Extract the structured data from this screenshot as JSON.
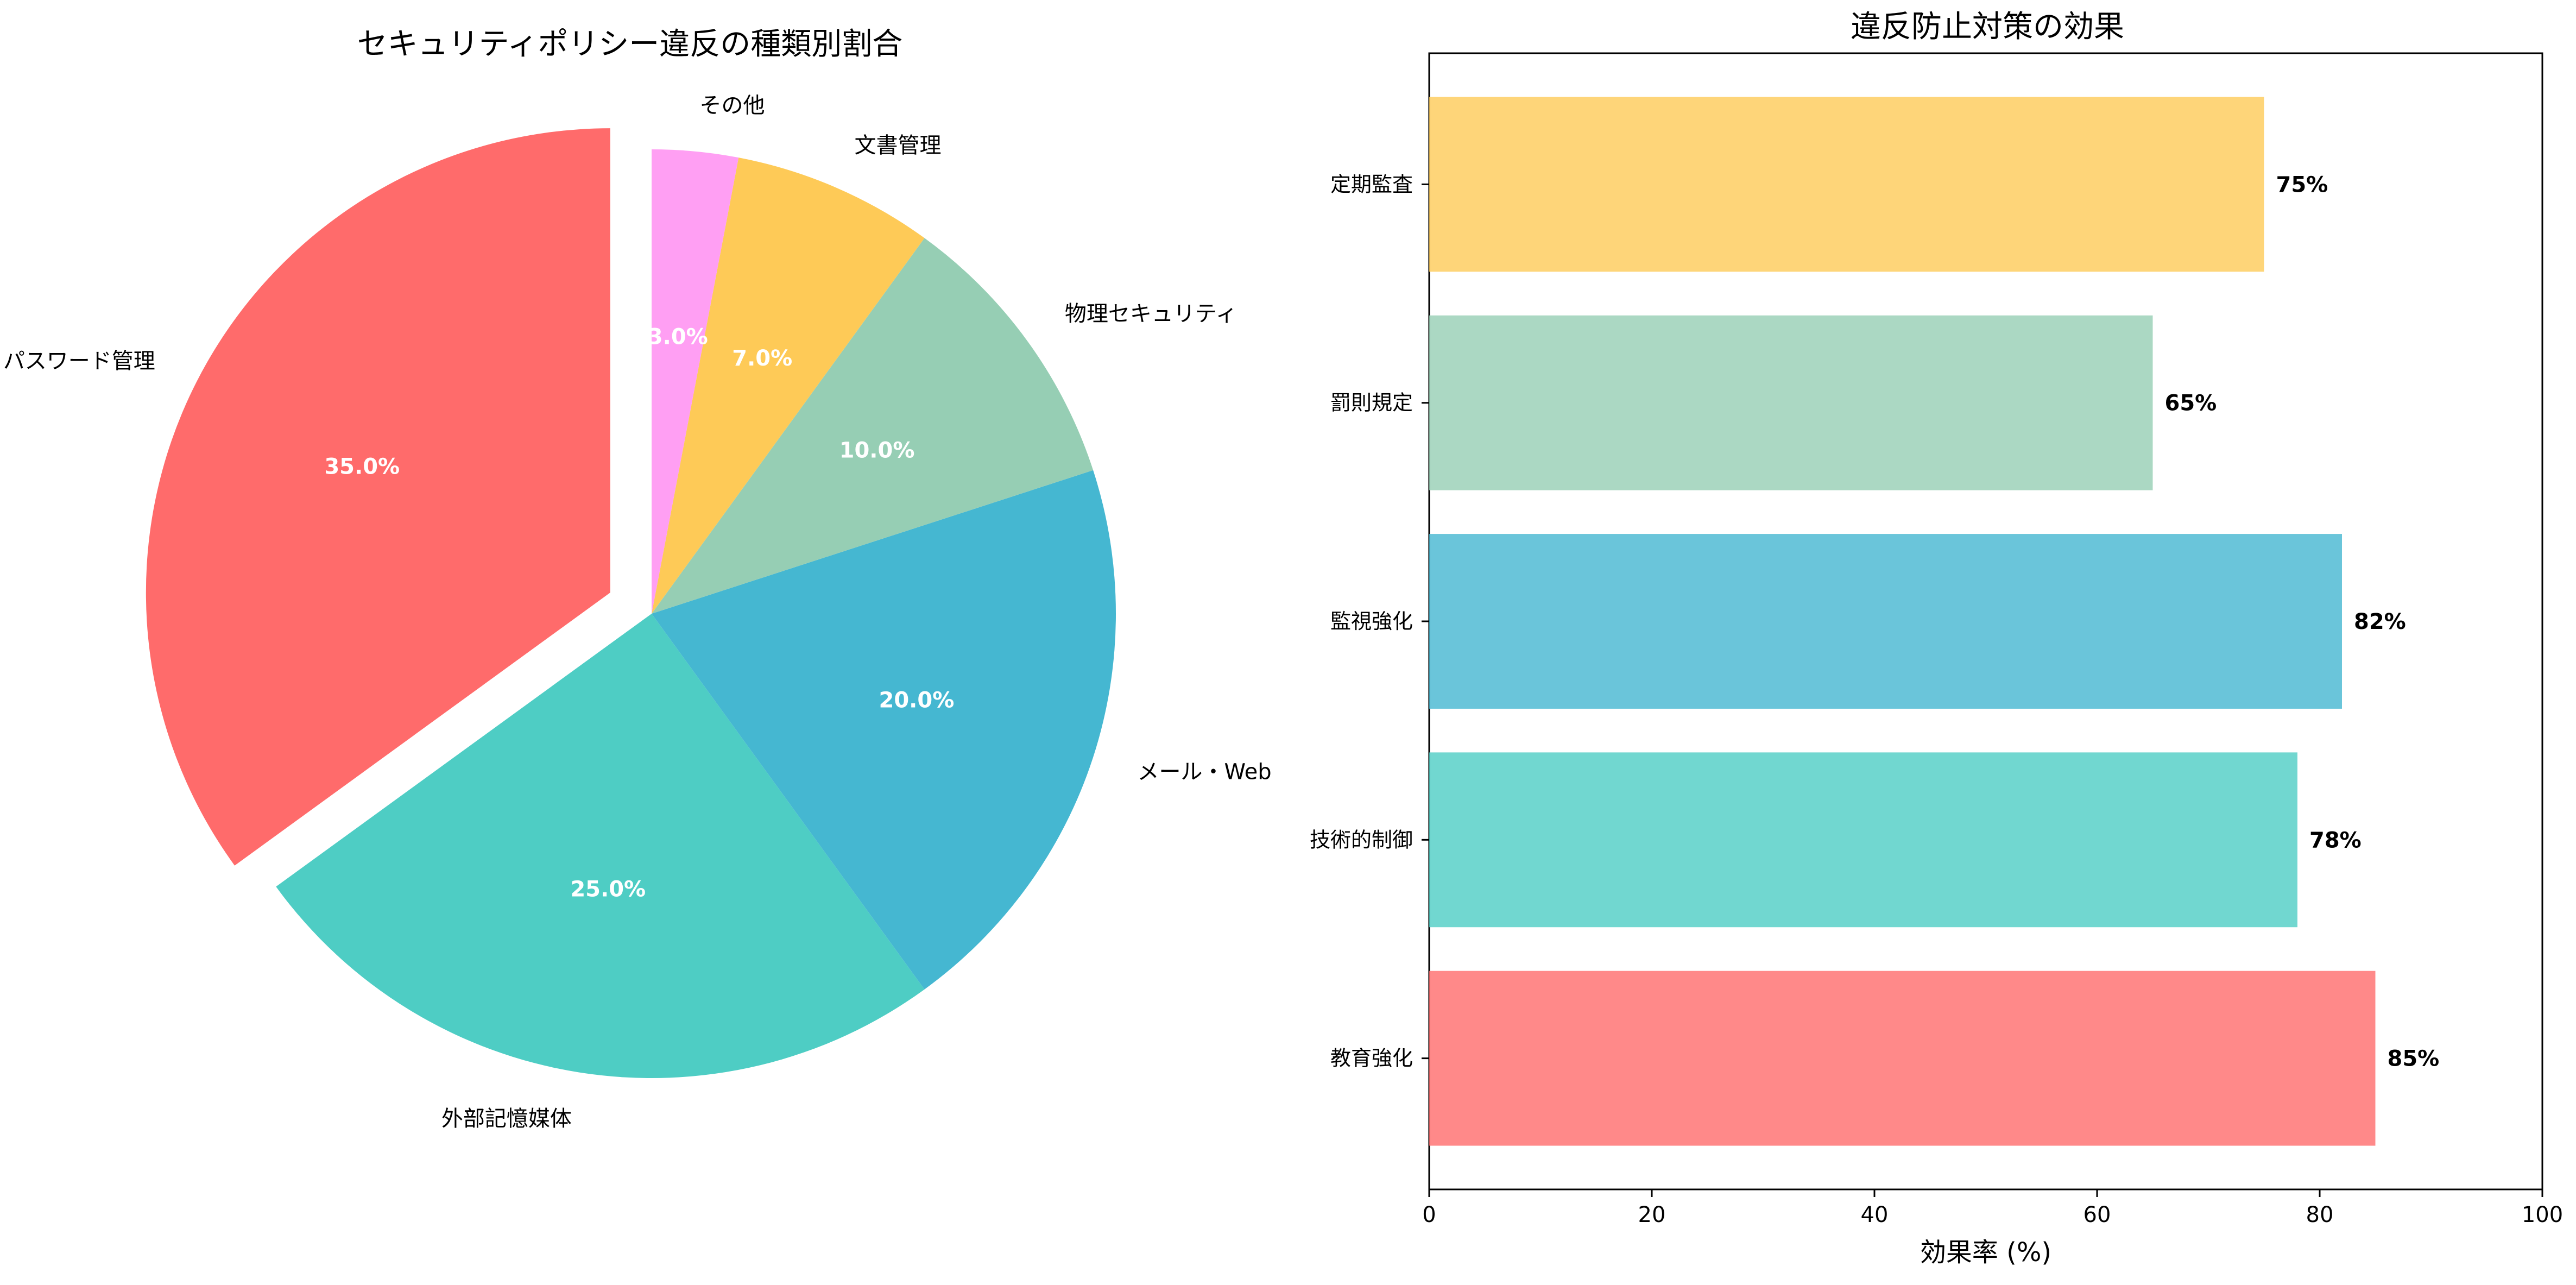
{
  "chart_data": [
    {
      "type": "pie",
      "title": "セキュリティポリシー違反の種類別割合",
      "categories": [
        "パスワード管理",
        "外部記憶媒体",
        "メール・Web",
        "物理セキュリティ",
        "文書管理",
        "その他"
      ],
      "values": [
        35.0,
        25.0,
        20.0,
        10.0,
        7.0,
        3.0
      ],
      "percent_labels": [
        "35.0%",
        "25.0%",
        "20.0%",
        "10.0%",
        "7.0%",
        "3.0%"
      ],
      "colors": [
        "#ff6b6b",
        "#4ecdc4",
        "#45b7d1",
        "#96ceb4",
        "#feca57",
        "#ff9ff3"
      ],
      "exploded": "パスワード管理",
      "start_angle_deg": 90,
      "direction": "counterclockwise"
    },
    {
      "type": "bar",
      "orientation": "horizontal",
      "title": "違反防止対策の効果",
      "categories": [
        "教育強化",
        "技術的制御",
        "監視強化",
        "罰則規定",
        "定期監査"
      ],
      "values": [
        85,
        78,
        82,
        65,
        75
      ],
      "value_labels": [
        "85%",
        "78%",
        "82%",
        "65%",
        "75%"
      ],
      "colors": [
        "#ff6b6b",
        "#4ecdc4",
        "#45b7d1",
        "#96ceb4",
        "#feca57"
      ],
      "bar_opacity": 0.8,
      "xlabel": "効果率 (%)",
      "xlim": [
        0,
        100
      ],
      "xticks": [
        "0",
        "20",
        "40",
        "60",
        "80",
        "100"
      ],
      "grid": false
    }
  ]
}
